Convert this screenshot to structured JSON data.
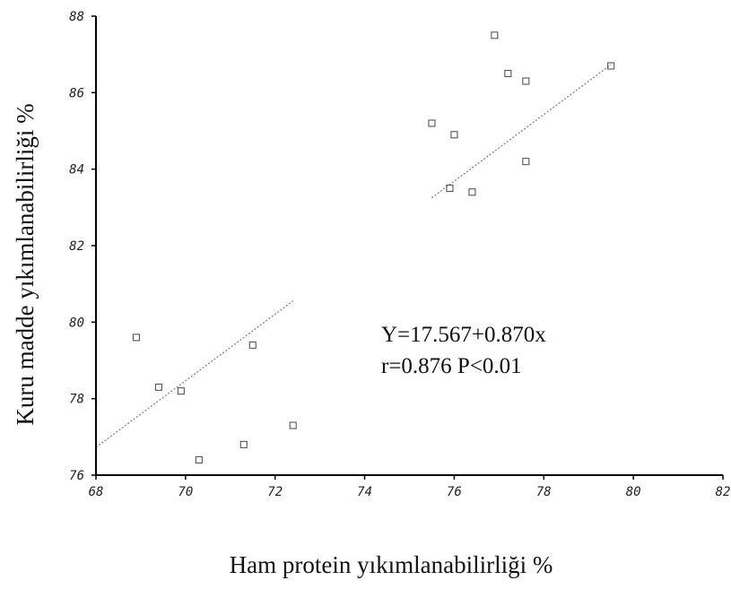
{
  "chart_data": {
    "type": "scatter",
    "title": "",
    "xlabel": "Ham protein yıkımlanabilirliği %",
    "ylabel": "Kuru madde yıkımlanabilirliği %",
    "xlim": [
      68,
      82
    ],
    "ylim": [
      76,
      88
    ],
    "x_ticks": [
      "68",
      "70",
      "72",
      "74",
      "76",
      "78",
      "80",
      "82"
    ],
    "y_ticks": [
      "76",
      "78",
      "80",
      "82",
      "84",
      "86",
      "88"
    ],
    "grid": false,
    "series": [
      {
        "points": [
          {
            "x": 68.9,
            "y": 79.6
          },
          {
            "x": 69.4,
            "y": 78.3
          },
          {
            "x": 69.9,
            "y": 78.2
          },
          {
            "x": 70.3,
            "y": 76.4
          },
          {
            "x": 71.3,
            "y": 76.8
          },
          {
            "x": 71.5,
            "y": 79.4
          },
          {
            "x": 72.4,
            "y": 77.3
          },
          {
            "x": 75.5,
            "y": 85.2
          },
          {
            "x": 75.9,
            "y": 83.5
          },
          {
            "x": 76.0,
            "y": 84.9
          },
          {
            "x": 76.4,
            "y": 83.4
          },
          {
            "x": 76.9,
            "y": 87.5
          },
          {
            "x": 77.2,
            "y": 86.5
          },
          {
            "x": 77.6,
            "y": 86.3
          },
          {
            "x": 77.6,
            "y": 84.2
          },
          {
            "x": 79.5,
            "y": 86.7
          }
        ]
      }
    ],
    "regression": {
      "intercept": 17.567,
      "slope": 0.87,
      "segments": [
        [
          68,
          72.4
        ],
        [
          75.5,
          79.5
        ]
      ]
    },
    "annotations": [
      "Y=17.567+0.870x",
      "r=0.876 P<0.01"
    ]
  }
}
